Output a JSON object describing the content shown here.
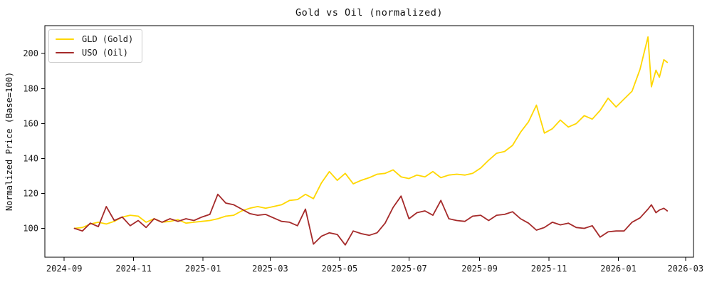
{
  "figure": {
    "title": "Gold vs Oil (normalized)",
    "background_color": "#ffffff",
    "text_color": "#1a1a1a"
  },
  "chart_data": {
    "type": "line",
    "title": "Gold vs Oil (normalized)",
    "xlabel": "",
    "ylabel": "Normalized Price (Base=100)",
    "grid": false,
    "legend_position": "upper left",
    "ylim": [
      83.5,
      216
    ],
    "y_ticks": [
      100,
      120,
      140,
      160,
      180,
      200
    ],
    "x_domain": [
      "2024-08-15",
      "2026-03-08"
    ],
    "x_ticks": [
      {
        "date": "2024-09-01",
        "label": "2024-09"
      },
      {
        "date": "2024-11-01",
        "label": "2024-11"
      },
      {
        "date": "2025-01-01",
        "label": "2025-01"
      },
      {
        "date": "2025-03-01",
        "label": "2025-03"
      },
      {
        "date": "2025-05-01",
        "label": "2025-05"
      },
      {
        "date": "2025-07-01",
        "label": "2025-07"
      },
      {
        "date": "2025-09-01",
        "label": "2025-09"
      },
      {
        "date": "2025-11-01",
        "label": "2025-11"
      },
      {
        "date": "2026-01-01",
        "label": "2026-01"
      },
      {
        "date": "2026-03-01",
        "label": "2026-03"
      }
    ],
    "x": [
      "2024-09-10",
      "2024-09-17",
      "2024-09-24",
      "2024-10-01",
      "2024-10-08",
      "2024-10-15",
      "2024-10-22",
      "2024-10-29",
      "2024-11-05",
      "2024-11-12",
      "2024-11-19",
      "2024-11-26",
      "2024-12-03",
      "2024-12-10",
      "2024-12-17",
      "2024-12-24",
      "2024-12-31",
      "2025-01-07",
      "2025-01-14",
      "2025-01-21",
      "2025-01-28",
      "2025-02-04",
      "2025-02-11",
      "2025-02-18",
      "2025-02-25",
      "2025-03-04",
      "2025-03-11",
      "2025-03-18",
      "2025-03-25",
      "2025-04-01",
      "2025-04-08",
      "2025-04-15",
      "2025-04-22",
      "2025-04-29",
      "2025-05-06",
      "2025-05-13",
      "2025-05-20",
      "2025-05-27",
      "2025-06-03",
      "2025-06-10",
      "2025-06-17",
      "2025-06-24",
      "2025-07-01",
      "2025-07-08",
      "2025-07-15",
      "2025-07-22",
      "2025-07-29",
      "2025-08-05",
      "2025-08-12",
      "2025-08-19",
      "2025-08-26",
      "2025-09-02",
      "2025-09-09",
      "2025-09-16",
      "2025-09-23",
      "2025-09-30",
      "2025-10-07",
      "2025-10-14",
      "2025-10-21",
      "2025-10-28",
      "2025-11-04",
      "2025-11-11",
      "2025-11-18",
      "2025-11-25",
      "2025-12-02",
      "2025-12-09",
      "2025-12-16",
      "2025-12-23",
      "2025-12-30",
      "2026-01-06",
      "2026-01-13",
      "2026-01-20",
      "2026-01-27",
      "2026-01-30",
      "2026-02-03",
      "2026-02-06",
      "2026-02-10",
      "2026-02-13"
    ],
    "series": [
      {
        "name": "GLD (Gold)",
        "color": "#FFD700",
        "values": [
          100,
          100.5,
          102.5,
          103.5,
          102.5,
          104,
          106.5,
          107.5,
          107,
          103.5,
          105.5,
          103.5,
          104,
          105,
          103,
          103.5,
          104,
          104.5,
          105.5,
          107,
          107.5,
          110,
          111.5,
          112.5,
          111.5,
          112.5,
          113.5,
          116,
          116.5,
          119.5,
          117,
          126,
          132.5,
          127.5,
          131.5,
          125.5,
          127.5,
          129,
          131,
          131.5,
          133.5,
          129.5,
          128.5,
          130.5,
          129.5,
          132.5,
          129,
          130.5,
          131,
          130.5,
          131.5,
          134.5,
          139,
          143,
          144,
          147.5,
          155,
          161,
          170.5,
          154.5,
          157,
          162,
          158,
          160,
          164.5,
          162.5,
          167.5,
          174.5,
          169.5,
          174,
          178.5,
          191,
          209.5,
          181,
          190.5,
          186.5,
          196.5,
          195
        ]
      },
      {
        "name": "USO (Oil)",
        "color": "#A52A2A",
        "values": [
          100,
          98.5,
          103,
          101,
          112.5,
          104.5,
          106.5,
          101.5,
          104.5,
          100.5,
          105.5,
          103.5,
          105.5,
          104,
          105.5,
          104.5,
          106.5,
          108,
          119.5,
          114.5,
          113.5,
          111,
          108.5,
          107.5,
          108,
          106,
          104,
          103.5,
          101.5,
          111,
          91,
          95.5,
          97.5,
          96.5,
          90.5,
          98.5,
          97,
          96,
          97.5,
          103,
          112,
          118.5,
          105.5,
          109,
          110,
          107.5,
          116,
          105.5,
          104.5,
          104,
          107,
          107.5,
          104.5,
          107.5,
          108,
          109.5,
          105.5,
          103,
          99,
          100.5,
          103.5,
          102,
          103,
          100.5,
          100,
          101.5,
          95,
          98,
          98.5,
          98.5,
          103.5,
          106,
          111,
          113.5,
          109,
          110.5,
          111.5,
          110
        ]
      }
    ]
  }
}
